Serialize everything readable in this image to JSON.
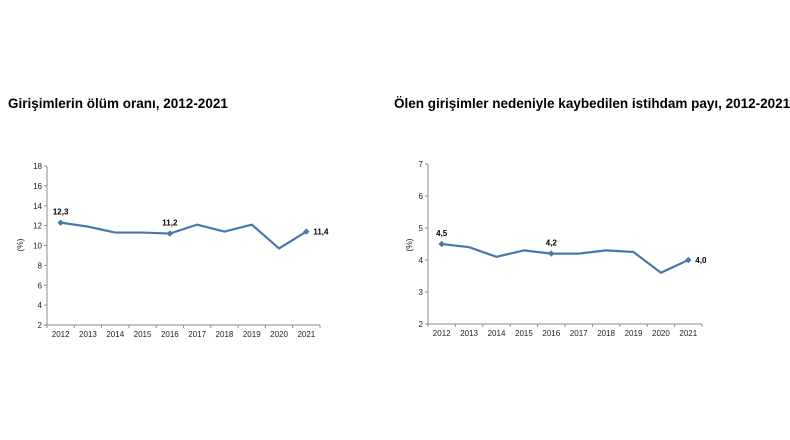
{
  "colors": {
    "series": "#4a78aa",
    "axis": "#8c8c8c",
    "text": "#222222"
  },
  "chart_data": [
    {
      "type": "line",
      "title": "Girişimlerin ölüm oranı, 2012-2021",
      "ylabel": "(%)",
      "xlabel": "",
      "x": [
        "2012",
        "2013",
        "2014",
        "2015",
        "2016",
        "2017",
        "2018",
        "2019",
        "2020",
        "2021"
      ],
      "series": [
        {
          "values": [
            12.3,
            11.9,
            11.3,
            11.3,
            11.2,
            12.1,
            11.4,
            12.1,
            9.7,
            11.4
          ]
        }
      ],
      "ylim": [
        2,
        18
      ],
      "yticks": [
        "2",
        "4",
        "6",
        "8",
        "10",
        "12",
        "14",
        "16",
        "18"
      ],
      "data_labels": [
        {
          "index": 0,
          "text": "12,3"
        },
        {
          "index": 4,
          "text": "11,2"
        },
        {
          "index": 9,
          "text": "11,4"
        }
      ],
      "grid": false,
      "legend": "none"
    },
    {
      "type": "line",
      "title": "Ölen girişimler nedeniyle kaybedilen istihdam payı, 2012-2021",
      "ylabel": "(%)",
      "xlabel": "",
      "x": [
        "2012",
        "2013",
        "2014",
        "2015",
        "2016",
        "2017",
        "2018",
        "2019",
        "2020",
        "2021"
      ],
      "series": [
        {
          "values": [
            4.5,
            4.4,
            4.1,
            4.3,
            4.2,
            4.2,
            4.3,
            4.25,
            3.6,
            4.0
          ]
        }
      ],
      "ylim": [
        2,
        7
      ],
      "yticks": [
        "2",
        "3",
        "4",
        "5",
        "6",
        "7"
      ],
      "data_labels": [
        {
          "index": 0,
          "text": "4,5"
        },
        {
          "index": 4,
          "text": "4,2"
        },
        {
          "index": 9,
          "text": "4,0"
        }
      ],
      "grid": false,
      "legend": "none"
    }
  ]
}
